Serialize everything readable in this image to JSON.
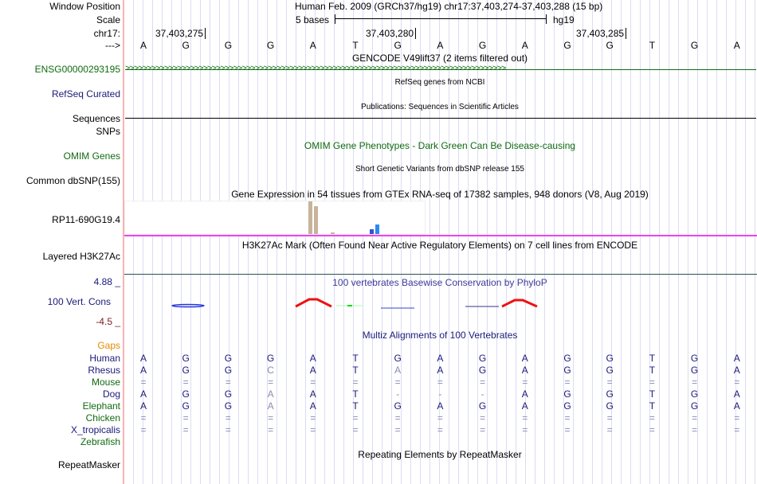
{
  "labels": {
    "window_position": "Window Position",
    "scale": "Scale",
    "chrom": "chr17:",
    "strand": "--->",
    "gencode_gene": "ENSG00000293195",
    "refseq": "RefSeq Curated",
    "sequences": "Sequences",
    "snps": "SNPs",
    "omim": "OMIM Genes",
    "dbsnp": "Common dbSNP(155)",
    "gtex": "RP11-690G19.4",
    "h3k27ac": "Layered H3K27Ac",
    "cons_max": "4.88 _",
    "cons": "100 Vert. Cons",
    "cons_min": "-4.5 _",
    "gaps": "Gaps",
    "repeatmasker": "RepeatMasker"
  },
  "header": {
    "assembly": "Human Feb. 2009 (GRCh37/hg19)",
    "position": "chr17:37,403,274-37,403,288 (15 bp)",
    "scale_text": "5 bases",
    "scale_db": "hg19",
    "ticks": [
      "37,403,275",
      "37,403,280",
      "37,403,285"
    ]
  },
  "bases": [
    "A",
    "G",
    "G",
    "G",
    "A",
    "T",
    "G",
    "A",
    "G",
    "A",
    "G",
    "G",
    "T",
    "G",
    "A"
  ],
  "tracks": {
    "gencode": "GENCODE V49lift37 (2 items filtered out)",
    "refseq": "RefSeq genes from NCBI",
    "publications": "Publications: Sequences in Scientific Articles",
    "omim": "OMIM Gene Phenotypes - Dark Green Can Be Disease-causing",
    "dbsnp": "Short Genetic Variants from dbSNP release 155",
    "gtex": "Gene Expression in 54 tissues from GTEx RNA-seq of 17382 samples, 948 donors (V8, Aug 2019)",
    "h3k27ac": "H3K27Ac Mark (Often Found Near Active Regulatory Elements) on 7 cell lines from ENCODE",
    "phylop": "100 vertebrates Basewise Conservation by PhyloP",
    "multiz": "Multiz Alignments of 100 Vertebrates",
    "rmsk": "Repeating Elements by RepeatMasker"
  },
  "alignment": [
    {
      "species": "Human",
      "color": "navy",
      "seq": "AGGGATGAGAGGTGA",
      "light": []
    },
    {
      "species": "Rhesus",
      "color": "navy",
      "seq": "AGGCATAAGAGGTGA",
      "light": [
        3,
        6
      ]
    },
    {
      "species": "Mouse",
      "color": "green",
      "seq": "===============",
      "light": []
    },
    {
      "species": "Dog",
      "color": "navy",
      "seq": "AGGAAT---AGGTGA",
      "light": [
        3
      ]
    },
    {
      "species": "Elephant",
      "color": "green",
      "seq": "AGGAATGAGAGGTGA",
      "light": [
        3
      ]
    },
    {
      "species": "Chicken",
      "color": "green",
      "seq": "===============",
      "light": []
    },
    {
      "species": "X_tropicalis",
      "color": "navy",
      "seq": "===============",
      "light": []
    },
    {
      "species": "Zebrafish",
      "color": "green",
      "seq": "",
      "light": []
    }
  ]
}
